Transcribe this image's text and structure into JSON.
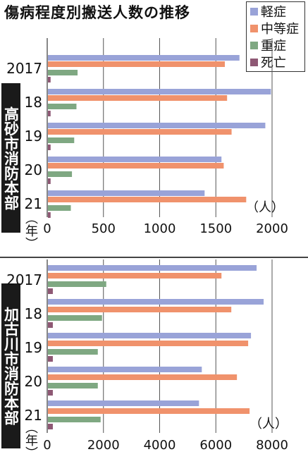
{
  "title": "傷病程度別搬送人数の推移",
  "legend": [
    {
      "label": "軽症",
      "color": "#99a3d8"
    },
    {
      "label": "中等症",
      "color": "#f0926c"
    },
    {
      "label": "重症",
      "color": "#7fa882"
    },
    {
      "label": "死亡",
      "color": "#8e5874"
    }
  ],
  "chart_data": [
    {
      "type": "bar",
      "orientation": "horizontal",
      "organization": "高砂市消防本部",
      "year_unit": "（年）",
      "value_unit": "（人）",
      "categories": [
        "2017",
        "18",
        "19",
        "20",
        "21"
      ],
      "xlim": [
        0,
        2000
      ],
      "xticks": [
        "0",
        "500",
        "1000",
        "1500",
        "2000"
      ],
      "series": [
        {
          "name": "軽症",
          "values": [
            1710,
            1990,
            1940,
            1550,
            1400
          ]
        },
        {
          "name": "中等症",
          "values": [
            1580,
            1600,
            1640,
            1570,
            1770
          ]
        },
        {
          "name": "重症",
          "values": [
            270,
            260,
            240,
            220,
            210
          ]
        },
        {
          "name": "死亡",
          "values": [
            30,
            30,
            30,
            30,
            30
          ]
        }
      ]
    },
    {
      "type": "bar",
      "orientation": "horizontal",
      "organization": "加古川市消防本部",
      "year_unit": "（年）",
      "value_unit": "（人）",
      "categories": [
        "2017",
        "18",
        "19",
        "20",
        "21"
      ],
      "xlim": [
        0,
        8000
      ],
      "xticks": [
        "0",
        "2000",
        "4000",
        "6000",
        "8000"
      ],
      "series": [
        {
          "name": "軽症",
          "values": [
            7450,
            7700,
            7250,
            5500,
            5400
          ]
        },
        {
          "name": "中等症",
          "values": [
            6200,
            6550,
            7150,
            6750,
            7200
          ]
        },
        {
          "name": "重症",
          "values": [
            2100,
            1950,
            1800,
            1800,
            1900
          ]
        },
        {
          "name": "死亡",
          "values": [
            200,
            200,
            200,
            200,
            200
          ]
        }
      ]
    }
  ]
}
